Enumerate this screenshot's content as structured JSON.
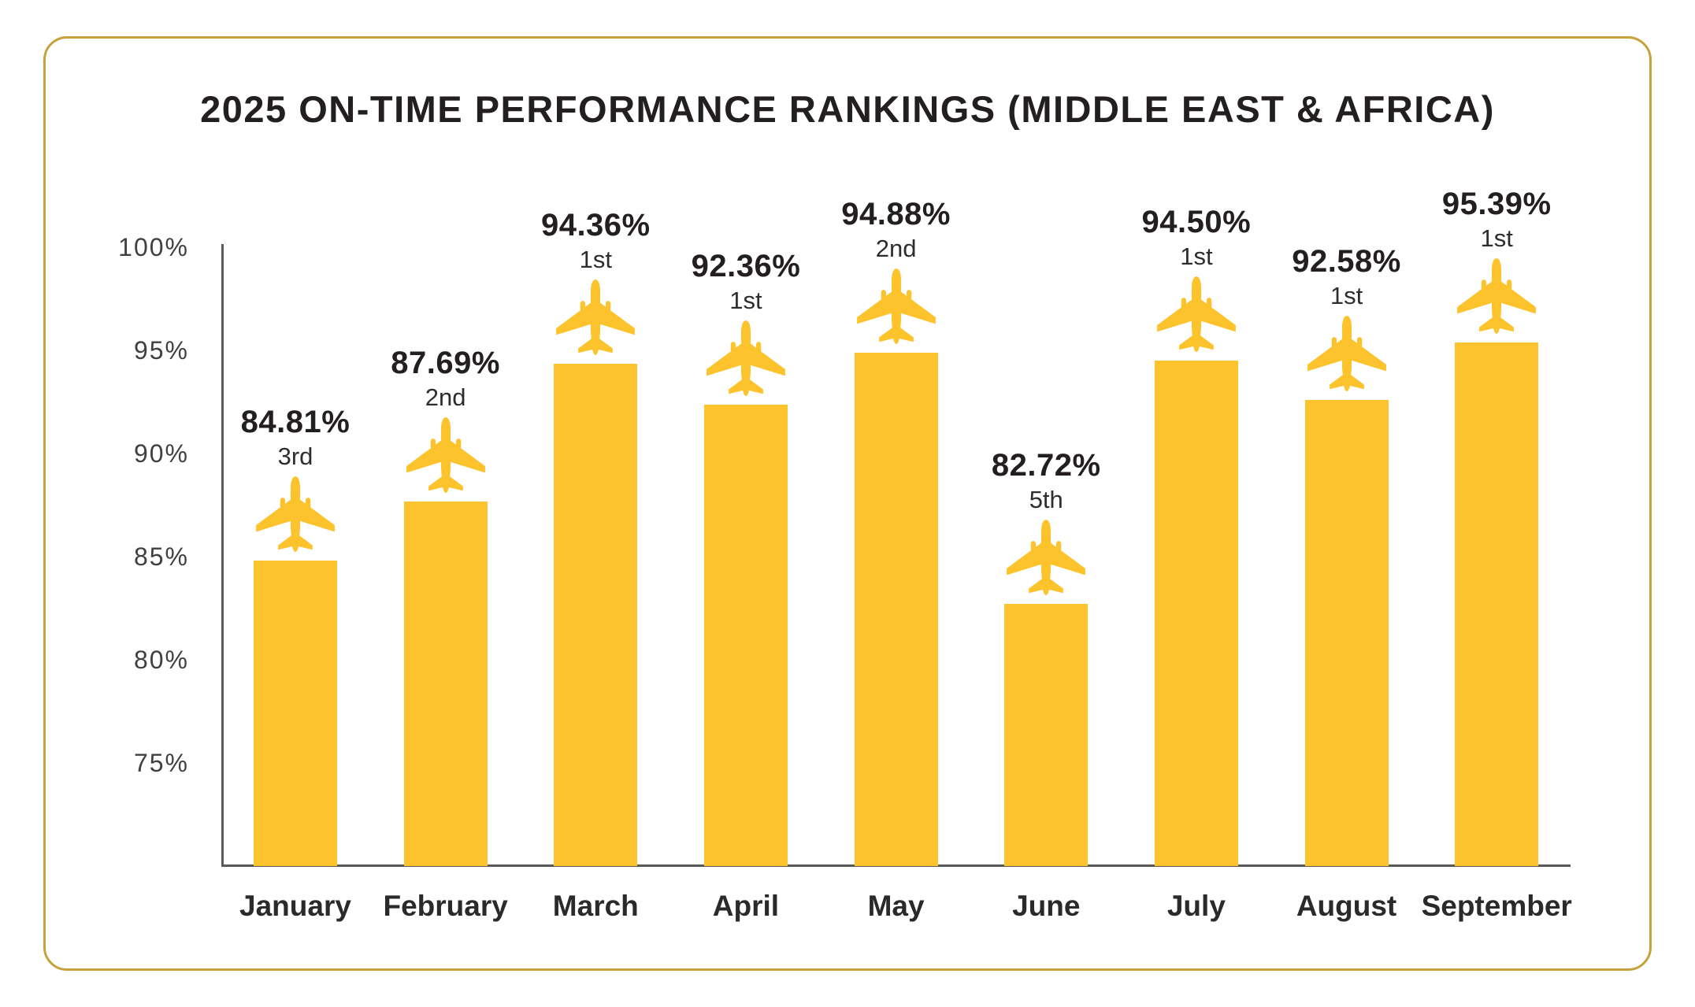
{
  "title": "2025 ON-TIME PERFORMANCE RANKINGS (MIDDLE EAST & AFRICA)",
  "colors": {
    "bar_gold": "#FDC32D",
    "border_gold": "#C7A23C",
    "axis_gray": "#58595B",
    "text_dark": "#231F20",
    "tick_text": "#404041"
  },
  "chart_data": {
    "type": "bar",
    "title": "2025 ON-TIME PERFORMANCE RANKINGS (MIDDLE EAST & AFRICA)",
    "categories": [
      "January",
      "February",
      "March",
      "April",
      "May",
      "June",
      "July",
      "August",
      "September"
    ],
    "values": [
      84.81,
      87.69,
      94.36,
      92.36,
      94.88,
      82.72,
      94.5,
      92.58,
      95.39
    ],
    "value_labels": [
      "84.81%",
      "87.69%",
      "94.36%",
      "92.36%",
      "94.88%",
      "82.72%",
      "94.50%",
      "92.58%",
      "95.39%"
    ],
    "rank_labels": [
      "3rd",
      "2nd",
      "1st",
      "1st",
      "2nd",
      "5th",
      "1st",
      "1st",
      "1st"
    ],
    "y_ticks": [
      "100%",
      "95%",
      "90%",
      "85%",
      "80%",
      "75%"
    ],
    "ylim": [
      70,
      100
    ],
    "xlabel": "",
    "ylabel": "",
    "grid": false,
    "legend": false,
    "bar_color": "#FDC32D",
    "marker_icon": "airplane"
  }
}
